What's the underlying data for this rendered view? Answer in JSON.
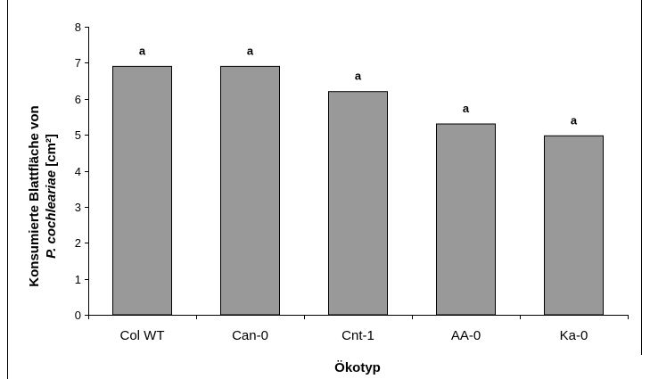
{
  "chart_data": {
    "type": "bar",
    "title": "",
    "xlabel": "Ökotyp",
    "ylabel_line1": "Konsumierte Blattfläche von",
    "ylabel_species": "P. cochleariae",
    "ylabel_unit": "[cm²]",
    "ylim": [
      0,
      8
    ],
    "yticks": [
      0,
      1,
      2,
      3,
      4,
      5,
      6,
      7,
      8
    ],
    "grid": false,
    "legend": "none",
    "categories": [
      "Col WT",
      "Can-0",
      "Cnt-1",
      "AA-0",
      "Ka-0"
    ],
    "values": [
      6.9,
      6.9,
      6.2,
      5.3,
      4.97
    ],
    "annotations": [
      "a",
      "a",
      "a",
      "a",
      "a"
    ],
    "bar_color": "#999999",
    "bar_edge_color": "#000000"
  }
}
